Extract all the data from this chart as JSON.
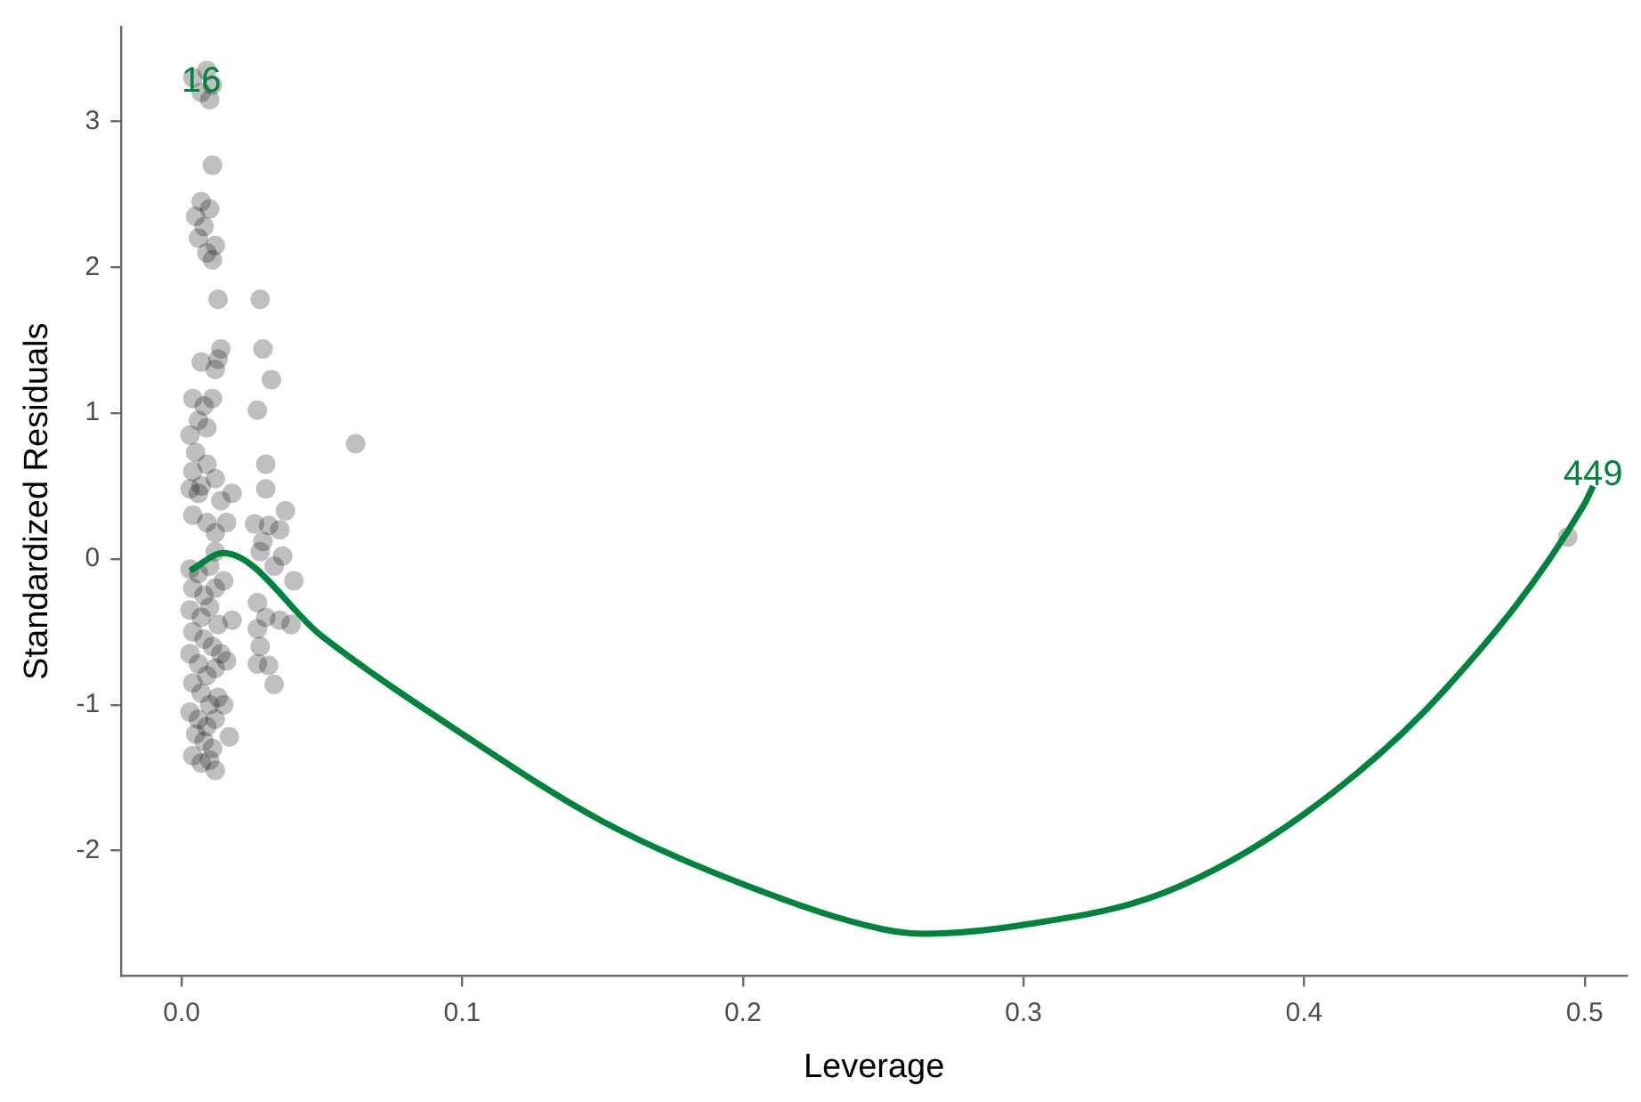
{
  "chart_data": {
    "type": "scatter",
    "xlabel": "Leverage",
    "ylabel": "Standardized Residuals",
    "xlim": [
      -0.0215,
      0.515
    ],
    "ylim": [
      -2.86,
      3.65
    ],
    "xticks": [
      {
        "value": 0,
        "label": "0.0"
      },
      0.1,
      0.2,
      0.3,
      0.4,
      0.5
    ],
    "yticks": [
      -2,
      -1,
      0,
      1,
      2,
      3
    ],
    "grid": false,
    "legend": false,
    "annotations": [
      {
        "text": "16",
        "x": 0.007,
        "y": 3.2
      },
      {
        "text": "449",
        "x": 0.503,
        "y": 0.5
      }
    ],
    "series": [
      {
        "marker": "circle",
        "color": "#000000",
        "x": [
          0.004,
          0.009,
          0.007,
          0.011,
          0.01,
          0.011,
          0.007,
          0.005,
          0.008,
          0.006,
          0.009,
          0.011,
          0.01,
          0.012,
          0.013,
          0.028,
          0.029,
          0.032,
          0.014,
          0.013,
          0.012,
          0.007,
          0.004,
          0.008,
          0.011,
          0.006,
          0.009,
          0.003,
          0.027,
          0.062,
          0.005,
          0.009,
          0.004,
          0.003,
          0.007,
          0.006,
          0.012,
          0.014,
          0.018,
          0.03,
          0.03,
          0.037,
          0.026,
          0.031,
          0.035,
          0.029,
          0.016,
          0.012,
          0.009,
          0.004,
          0.036,
          0.028,
          0.033,
          0.04,
          0.003,
          0.006,
          0.01,
          0.012,
          0.004,
          0.008,
          0.012,
          0.015,
          0.003,
          0.007,
          0.01,
          0.013,
          0.018,
          0.027,
          0.03,
          0.027,
          0.035,
          0.039,
          0.004,
          0.008,
          0.011,
          0.014,
          0.003,
          0.006,
          0.009,
          0.012,
          0.016,
          0.028,
          0.031,
          0.027,
          0.033,
          0.004,
          0.007,
          0.01,
          0.013,
          0.003,
          0.006,
          0.009,
          0.012,
          0.015,
          0.005,
          0.008,
          0.011,
          0.017,
          0.004,
          0.007,
          0.01,
          0.012,
          0.494
        ],
        "values": [
          3.3,
          3.35,
          3.2,
          3.25,
          3.15,
          2.7,
          2.45,
          2.35,
          2.28,
          2.2,
          2.1,
          2.05,
          2.4,
          2.15,
          1.78,
          1.78,
          1.44,
          1.23,
          1.44,
          1.37,
          1.3,
          1.35,
          1.1,
          1.05,
          1.1,
          0.95,
          0.9,
          0.85,
          1.02,
          0.79,
          0.73,
          0.65,
          0.6,
          0.48,
          0.5,
          0.45,
          0.55,
          0.4,
          0.45,
          0.65,
          0.48,
          0.33,
          0.24,
          0.23,
          0.2,
          0.12,
          0.25,
          0.18,
          0.25,
          0.3,
          0.02,
          0.05,
          -0.05,
          -0.15,
          -0.07,
          -0.1,
          -0.05,
          0.05,
          -0.2,
          -0.25,
          -0.2,
          -0.15,
          -0.35,
          -0.4,
          -0.33,
          -0.45,
          -0.42,
          -0.3,
          -0.4,
          -0.48,
          -0.42,
          -0.45,
          -0.5,
          -0.55,
          -0.6,
          -0.65,
          -0.65,
          -0.72,
          -0.8,
          -0.75,
          -0.7,
          -0.6,
          -0.73,
          -0.72,
          -0.86,
          -0.85,
          -0.92,
          -1.0,
          -0.95,
          -1.05,
          -1.1,
          -1.15,
          -1.1,
          -1.0,
          -1.2,
          -1.25,
          -1.3,
          -1.22,
          -1.35,
          -1.4,
          -1.38,
          -1.45,
          0.15
        ]
      },
      {
        "type": "line",
        "marker": "none",
        "color": "#00843d",
        "x": [
          0.003,
          0.015,
          0.05,
          0.1,
          0.15,
          0.2,
          0.25,
          0.265,
          0.3,
          0.35,
          0.4,
          0.45,
          0.5,
          0.503
        ],
        "values": [
          -0.08,
          0.04,
          -0.53,
          -1.2,
          -1.8,
          -2.23,
          -2.54,
          -2.57,
          -2.51,
          -2.29,
          -1.75,
          -0.9,
          0.38,
          0.5
        ]
      }
    ]
  }
}
